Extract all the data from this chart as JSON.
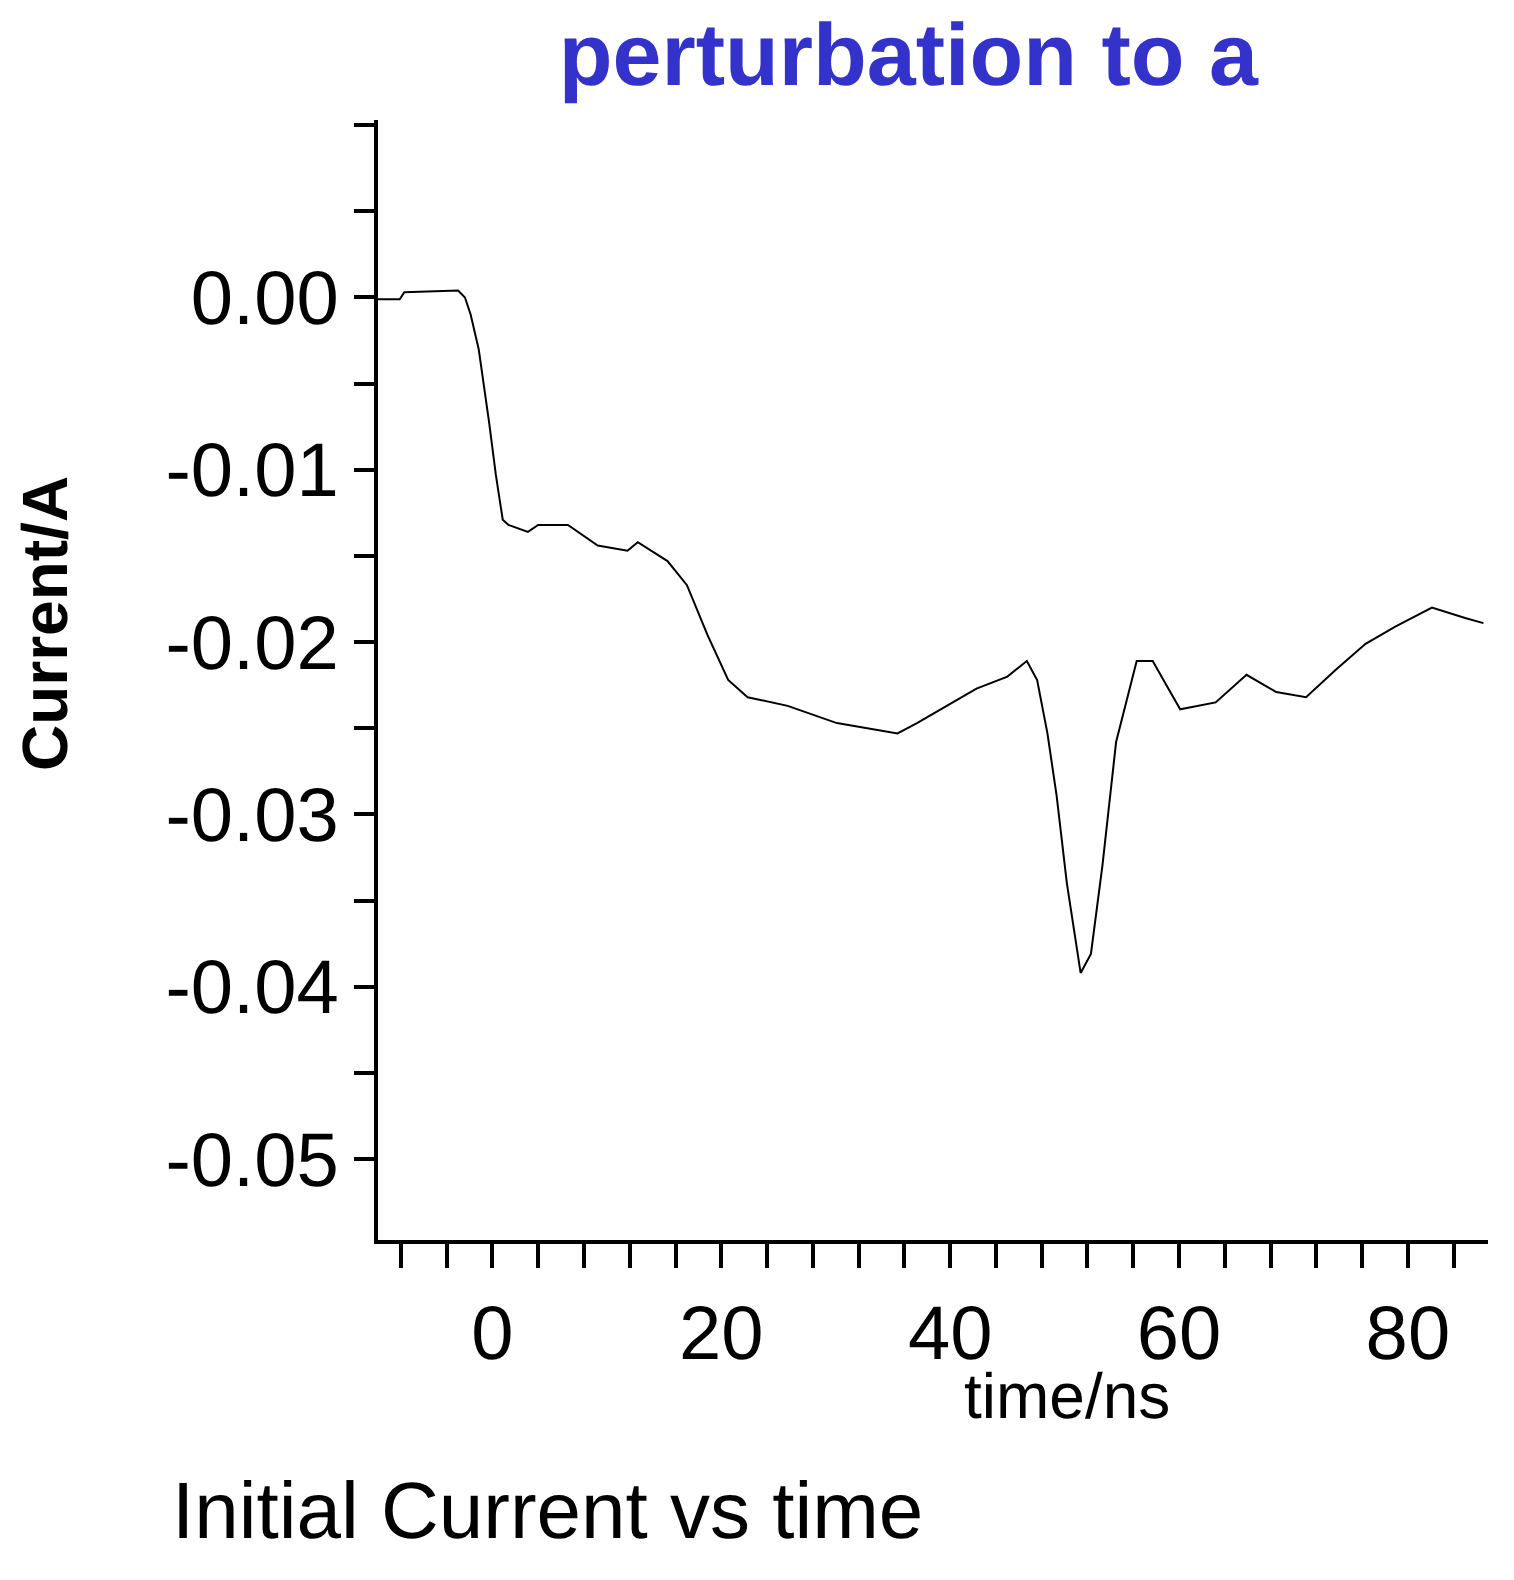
{
  "chart_data": {
    "type": "line",
    "title": "perturbation to a",
    "xlabel": "time/ns",
    "ylabel": "Current/A",
    "annotations": [
      "Initial Current vs time"
    ],
    "x": [
      -10,
      -8.1,
      -7.7,
      -3,
      -2.4,
      -1.9,
      -1.2,
      -0.3,
      0.3,
      0.9,
      1.4,
      3.1,
      4,
      6.6,
      9.2,
      11.8,
      12.7,
      15.3,
      17,
      18.8,
      20.6,
      22.3,
      25.8,
      30.1,
      35.4,
      37.1,
      39.7,
      42.3,
      45,
      46.7,
      47.6,
      48.5,
      49.3,
      50.2,
      51.4,
      52.3,
      53.3,
      54.5,
      56.3,
      57.7,
      58.9,
      60.1,
      63.2,
      65.9,
      68.5,
      71.1,
      73.7,
      76.3,
      78.9,
      82.1,
      85,
      86.6
    ],
    "series": [
      {
        "color": "#000000",
        "values": [
          -0.0001,
          -0.0001,
          0.0003,
          0.0004,
          0,
          -0.001,
          -0.003,
          -0.0072,
          -0.0103,
          -0.0129,
          -0.0132,
          -0.0136,
          -0.0132,
          -0.0132,
          -0.0144,
          -0.0147,
          -0.0142,
          -0.0153,
          -0.0167,
          -0.0196,
          -0.0222,
          -0.0232,
          -0.0237,
          -0.0247,
          -0.0253,
          -0.0247,
          -0.0237,
          -0.0227,
          -0.022,
          -0.0211,
          -0.0222,
          -0.0253,
          -0.0289,
          -0.034,
          -0.0392,
          -0.0381,
          -0.033,
          -0.0258,
          -0.0211,
          -0.0211,
          -0.0225,
          -0.0239,
          -0.0235,
          -0.0219,
          -0.0229,
          -0.0232,
          -0.0216,
          -0.0201,
          -0.0191,
          -0.018,
          -0.0186,
          -0.0189
        ]
      }
    ],
    "xlim": [
      -10,
      87
    ],
    "ylim": [
      -0.0547,
      0.0103
    ],
    "xticks": [
      {
        "value": -8,
        "label": null
      },
      {
        "value": -4,
        "label": null
      },
      0,
      {
        "value": 4,
        "label": null
      },
      {
        "value": 8,
        "label": null
      },
      {
        "value": 12,
        "label": null
      },
      {
        "value": 16,
        "label": null
      },
      20,
      {
        "value": 24,
        "label": null
      },
      {
        "value": 28,
        "label": null
      },
      {
        "value": 32,
        "label": null
      },
      {
        "value": 36,
        "label": null
      },
      40,
      {
        "value": 44,
        "label": null
      },
      {
        "value": 48,
        "label": null
      },
      {
        "value": 52,
        "label": null
      },
      {
        "value": 56,
        "label": null
      },
      60,
      {
        "value": 64,
        "label": null
      },
      {
        "value": 68,
        "label": null
      },
      {
        "value": 72,
        "label": null
      },
      {
        "value": 76,
        "label": null
      },
      80,
      {
        "value": 84,
        "label": null
      }
    ],
    "yticks": [
      {
        "value": -0.05,
        "label": "-0.05"
      },
      {
        "value": -0.045,
        "label": null
      },
      {
        "value": -0.04,
        "label": "-0.04"
      },
      {
        "value": -0.035,
        "label": null
      },
      {
        "value": -0.03,
        "label": "-0.03"
      },
      {
        "value": -0.025,
        "label": null
      },
      {
        "value": -0.02,
        "label": "-0.02"
      },
      {
        "value": -0.015,
        "label": null
      },
      {
        "value": -0.01,
        "label": "-0.01"
      },
      {
        "value": -0.005,
        "label": null
      },
      {
        "value": 0,
        "label": "0.00"
      },
      {
        "value": 0.005,
        "label": null
      },
      {
        "value": 0.01,
        "label": null
      }
    ],
    "grid": false,
    "legend": false,
    "marker": "none",
    "line_style": "solid"
  }
}
